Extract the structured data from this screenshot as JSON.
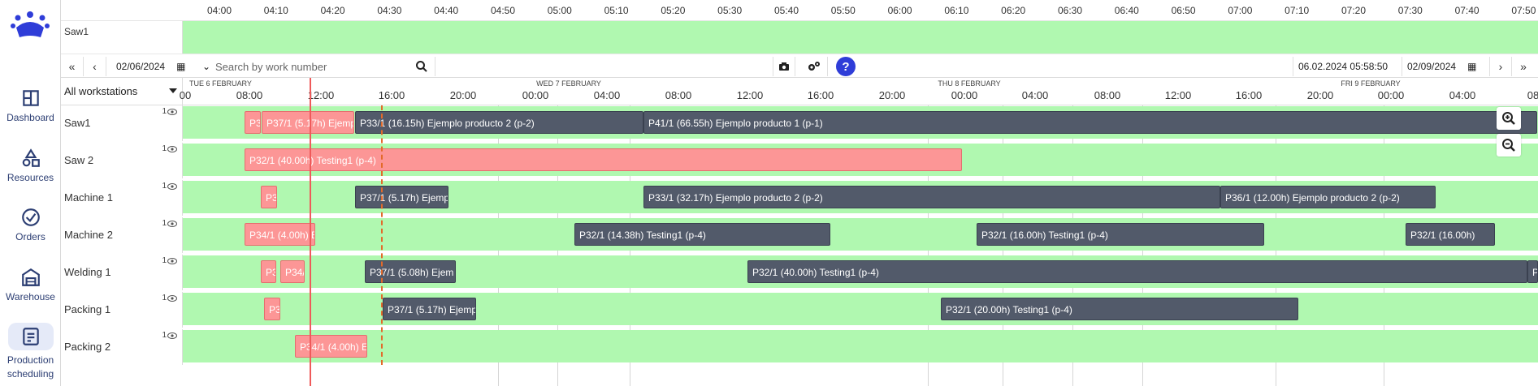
{
  "nav": [
    {
      "label": "Dashboard",
      "icon": "dashboard-icon"
    },
    {
      "label": "Resources",
      "icon": "resources-icon"
    },
    {
      "label": "Orders",
      "icon": "orders-icon"
    },
    {
      "label": "Warehouse",
      "icon": "warehouse-icon"
    },
    {
      "label": "Production scheduling",
      "icon": "production-scheduling-icon",
      "active": true
    }
  ],
  "mini_axis": {
    "ticks": [
      "04:00",
      "04:10",
      "04:20",
      "04:30",
      "04:40",
      "04:50",
      "05:00",
      "05:10",
      "05:20",
      "05:30",
      "05:40",
      "05:50",
      "06:00",
      "06:10",
      "06:20",
      "06:30",
      "06:40",
      "06:50",
      "07:00",
      "07:10",
      "07:20",
      "07:30",
      "07:40",
      "07:50"
    ],
    "row_label": "Saw1"
  },
  "toolbar": {
    "start_date": "02/06/2024",
    "search_placeholder": "Search by work number",
    "current_datetime": "06.02.2024 05:58:50",
    "end_date": "02/09/2024",
    "help": "?"
  },
  "workstation_select": "All workstations",
  "days": [
    "TUE 6 FEBRUARY",
    "WED 7 FEBRUARY",
    "THU 8 FEBRUARY",
    "FRI 9 FEBRUARY"
  ],
  "hours": [
    "00",
    "08:00",
    "12:00",
    "16:00",
    "20:00",
    "00:00",
    "04:00",
    "08:00",
    "12:00",
    "16:00",
    "20:00",
    "00:00",
    "04:00",
    "08:00",
    "12:00",
    "16:00",
    "20:00",
    "00:00",
    "04:00",
    "08"
  ],
  "rows": [
    {
      "name": "Saw1",
      "count": "1",
      "tasks": [
        {
          "label": "P3",
          "color": "pink"
        },
        {
          "label": "P37/1 (5.17h) Ejemp",
          "color": "pink"
        },
        {
          "label": "P33/1 (16.15h) Ejemplo producto 2 (p-2)",
          "color": "dark"
        },
        {
          "label": "P41/1 (66.55h) Ejemplo producto 1 (p-1)",
          "color": "dark"
        }
      ]
    },
    {
      "name": "Saw 2",
      "count": "1",
      "tasks": [
        {
          "label": "P32/1 (40.00h) Testing1 (p-4)",
          "color": "pink"
        }
      ]
    },
    {
      "name": "Machine 1",
      "count": "1",
      "tasks": [
        {
          "label": "P3",
          "color": "pink"
        },
        {
          "label": "P37/1 (5.17h) Ejemp",
          "color": "dark"
        },
        {
          "label": "P33/1 (32.17h) Ejemplo producto 2 (p-2)",
          "color": "dark"
        },
        {
          "label": "P36/1 (12.00h) Ejemplo producto 2 (p-2)",
          "color": "dark"
        }
      ]
    },
    {
      "name": "Machine 2",
      "count": "1",
      "tasks": [
        {
          "label": "P34/1 (4.00h) E",
          "color": "pink"
        },
        {
          "label": "P32/1 (14.38h) Testing1 (p-4)",
          "color": "dark"
        },
        {
          "label": "P32/1 (16.00h) Testing1 (p-4)",
          "color": "dark"
        },
        {
          "label": "P32/1 (16.00h)",
          "color": "dark"
        }
      ]
    },
    {
      "name": "Welding 1",
      "count": "1",
      "tasks": [
        {
          "label": "P3",
          "color": "pink"
        },
        {
          "label": "P34/",
          "color": "pink"
        },
        {
          "label": "P37/1 (5.08h) Ejem",
          "color": "dark"
        },
        {
          "label": "P32/1 (40.00h) Testing1 (p-4)",
          "color": "dark"
        },
        {
          "label": "P",
          "color": "dark"
        }
      ]
    },
    {
      "name": "Packing 1",
      "count": "1",
      "tasks": [
        {
          "label": "P3",
          "color": "pink"
        },
        {
          "label": "P37/1 (5.17h) Ejemp",
          "color": "dark"
        },
        {
          "label": "P32/1 (20.00h) Testing1 (p-4)",
          "color": "dark"
        }
      ]
    },
    {
      "name": "Packing 2",
      "count": "1",
      "tasks": [
        {
          "label": "P34/1 (4.00h) E",
          "color": "pink"
        }
      ]
    }
  ],
  "colors": {
    "green": "#b0f8b0",
    "dark": "#525a6a",
    "pink": "#fc9696",
    "accent": "#2f3dd8",
    "now": "#ef5a5a"
  }
}
